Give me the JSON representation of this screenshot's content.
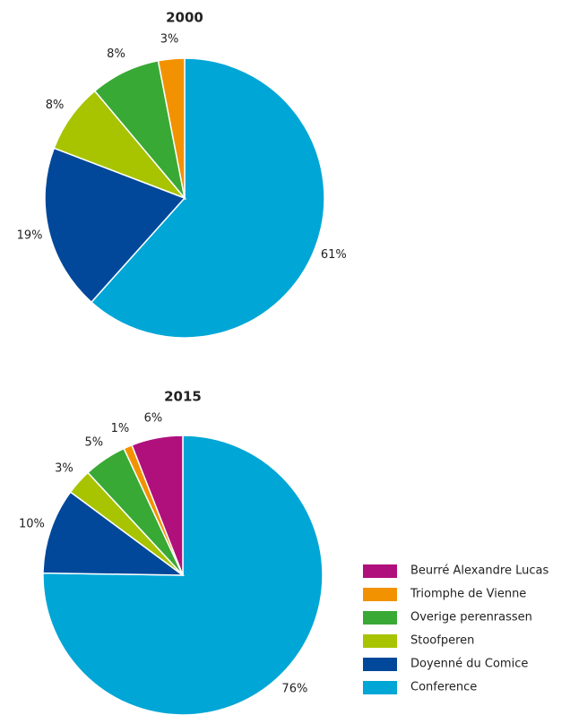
{
  "chart_data": [
    {
      "type": "pie",
      "title": "2000",
      "categories": [
        "Conference",
        "Doyenné du Comice",
        "Stoofperen",
        "Overige perenrassen",
        "Triomphe de Vienne"
      ],
      "values": [
        61,
        19,
        8,
        8,
        3
      ],
      "value_labels": [
        "61%",
        "19%",
        "8%",
        "8%",
        "3%"
      ],
      "colors": [
        "#00a6d6",
        "#01489a",
        "#a8c300",
        "#39a935",
        "#f39200"
      ]
    },
    {
      "type": "pie",
      "title": "2015",
      "categories": [
        "Conference",
        "Doyenné du Comice",
        "Stoofperen",
        "Overige perenrassen",
        "Triomphe de Vienne",
        "Beurré Alexandre Lucas"
      ],
      "values": [
        76,
        10,
        3,
        5,
        1,
        6
      ],
      "value_labels": [
        "76%",
        "10%",
        "3%",
        "5%",
        "1%",
        "6%"
      ],
      "colors": [
        "#00a6d6",
        "#01489a",
        "#a8c300",
        "#39a935",
        "#f39200",
        "#b0107c"
      ],
      "legend": "bottom-right"
    }
  ]
}
